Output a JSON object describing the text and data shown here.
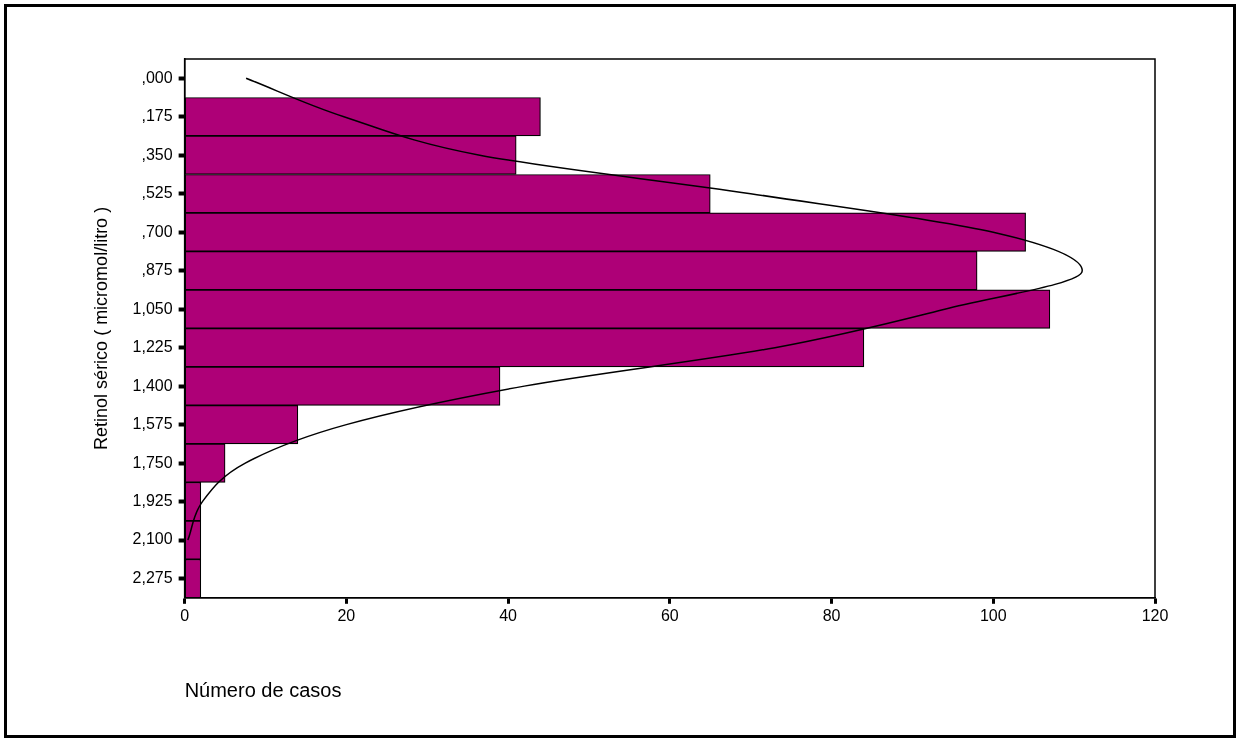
{
  "chart_data": {
    "type": "bar",
    "orientation": "horizontal",
    "categories": [
      ",000",
      ",175",
      ",350",
      ",525",
      ",700",
      ",875",
      "1,050",
      "1,225",
      "1,400",
      "1,575",
      "1,750",
      "1,925",
      "2,100",
      "2,275"
    ],
    "series": [
      {
        "color": "#ae0077",
        "values": [
          0,
          44,
          41,
          65,
          104,
          98,
          107,
          84,
          39,
          14,
          5,
          2,
          2,
          2
        ]
      },
      {
        "type": "line",
        "color": "#000000",
        "marker": "none",
        "values": [
          7.6,
          19.7,
          36.5,
          70,
          100,
          111,
          94,
          73,
          42,
          20,
          7.5,
          2.2,
          0.4,
          null
        ]
      }
    ],
    "xlim": [
      0,
      120
    ],
    "xticks": [
      0,
      20,
      40,
      60,
      80,
      100,
      120
    ],
    "xlabel": "Número de casos",
    "ylabel": "Retinol sérico ( micromol/litro )",
    "grid": false
  }
}
